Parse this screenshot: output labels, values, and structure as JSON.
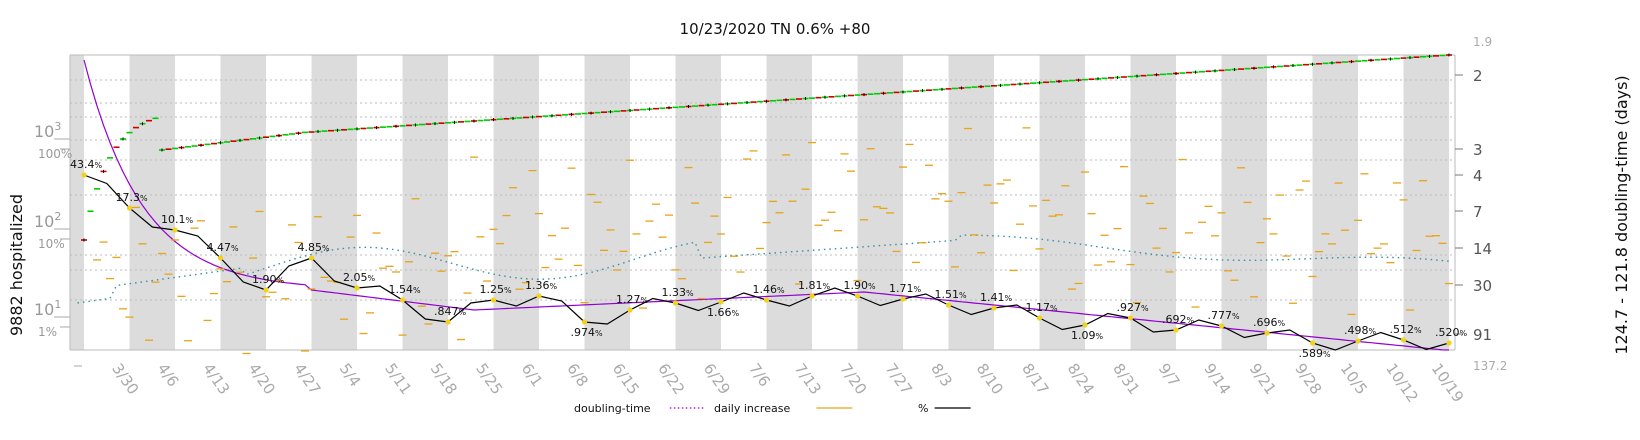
{
  "chart_data": {
    "type": "line",
    "title": "10/23/2020 TN 0.6% +80",
    "ylabel_left": "9882 hospitalized",
    "ylabel_right": "124.7 - 121.8 doubling-time (days)",
    "y_scale": "log",
    "x_tick_labels": [
      "3/30",
      "4/6",
      "4/13",
      "4/20",
      "4/27",
      "5/4",
      "5/11",
      "5/18",
      "5/25",
      "6/1",
      "6/8",
      "6/15",
      "6/22",
      "6/29",
      "7/6",
      "7/13",
      "7/20",
      "7/27",
      "8/3",
      "8/10",
      "8/17",
      "8/24",
      "8/31",
      "9/7",
      "9/14",
      "9/21",
      "9/28",
      "10/5",
      "10/12",
      "10/19"
    ],
    "left_axis": {
      "ticks": [
        {
          "base": "10",
          "exp": "3"
        },
        {
          "base": "10",
          "exp": "2"
        },
        {
          "base": "10",
          "exp": "1"
        }
      ],
      "percent_ticks": [
        "100%",
        "10%",
        "1%"
      ]
    },
    "right_axis": {
      "ticks": [
        "2",
        "3",
        "4",
        "7",
        "14",
        "30",
        "91"
      ],
      "limits": [
        "1.9",
        "137.2"
      ]
    },
    "annotations": [
      {
        "value": "43.4",
        "day": 0
      },
      {
        "value": "17.3",
        "day": 7
      },
      {
        "value": "10.1",
        "day": 14
      },
      {
        "value": "4.47",
        "day": 21
      },
      {
        "value": "1.90",
        "day": 28
      },
      {
        "value": "4.85",
        "day": 35
      },
      {
        "value": "2.05",
        "day": 42
      },
      {
        "value": "1.54",
        "day": 49
      },
      {
        "value": ".847",
        "day": 56
      },
      {
        "value": "1.25",
        "day": 63
      },
      {
        "value": "1.36",
        "day": 70
      },
      {
        "value": ".974",
        "day": 77
      },
      {
        "value": "1.27",
        "day": 84
      },
      {
        "value": "1.33",
        "day": 91
      },
      {
        "value": "1.66",
        "day": 98
      },
      {
        "value": "1.46",
        "day": 105
      },
      {
        "value": "1.81",
        "day": 112
      },
      {
        "value": "1.90",
        "day": 119
      },
      {
        "value": "1.71",
        "day": 126
      },
      {
        "value": "1.51",
        "day": 133
      },
      {
        "value": "1.41",
        "day": 140
      },
      {
        "value": "1.17",
        "day": 147
      },
      {
        "value": "1.09",
        "day": 154
      },
      {
        "value": ".927",
        "day": 161
      },
      {
        "value": ".692",
        "day": 168
      },
      {
        "value": ".777",
        "day": 175
      },
      {
        "value": ".696",
        "day": 182
      },
      {
        "value": ".589",
        "day": 189
      },
      {
        "value": ".498",
        "day": 196
      },
      {
        "value": ".512",
        "day": 203
      },
      {
        "value": ".520",
        "day": 210
      }
    ],
    "series": [
      {
        "name": "doubling-time",
        "color": "#9400d3",
        "style": "dotted"
      },
      {
        "name": "daily increase",
        "color": "#e8a317",
        "style": "solid"
      },
      {
        "name": "%",
        "color": "#000000",
        "style": "solid"
      }
    ],
    "colors": {
      "up": "#00cc00",
      "down": "#cc0000",
      "band": "#dcdcdc",
      "teal": "#3a8f9f"
    }
  }
}
